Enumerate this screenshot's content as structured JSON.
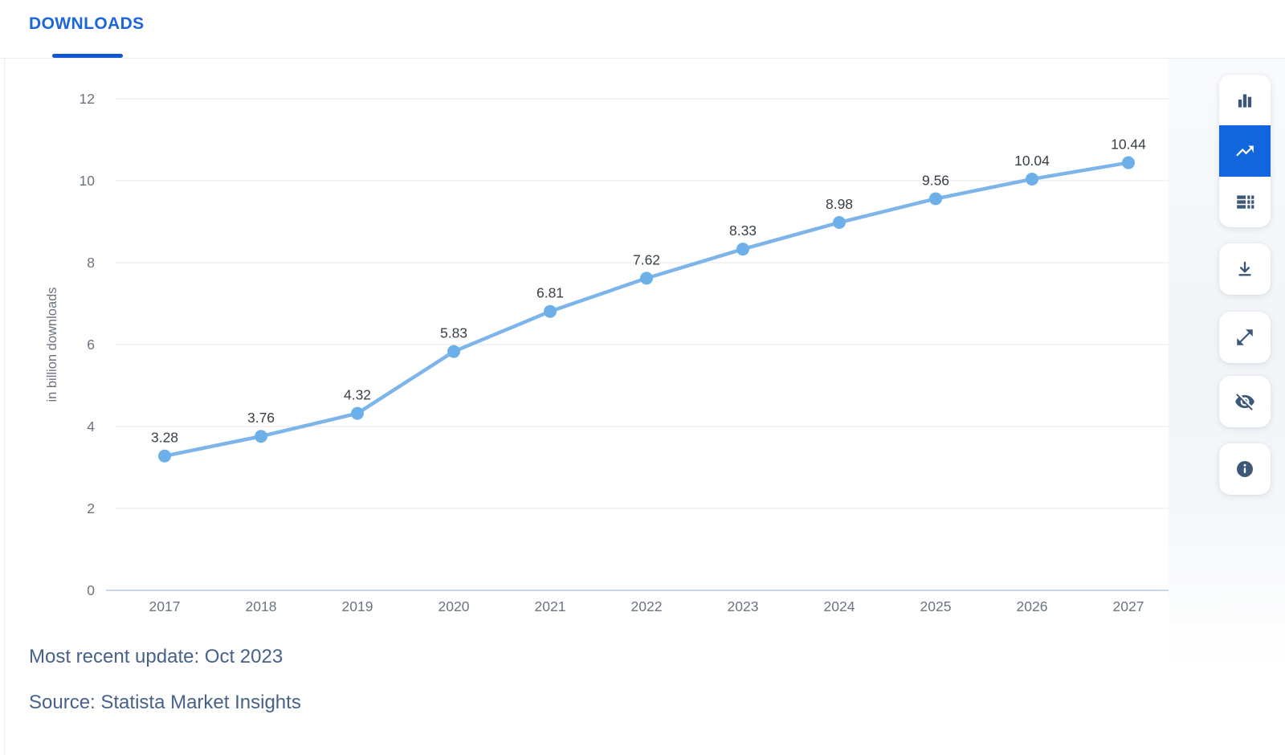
{
  "tabs": [
    {
      "label": "DOWNLOADS",
      "active": true
    }
  ],
  "chart_data": {
    "type": "line",
    "x": [
      2017,
      2018,
      2019,
      2020,
      2021,
      2022,
      2023,
      2024,
      2025,
      2026,
      2027
    ],
    "values": [
      3.28,
      3.76,
      4.32,
      5.83,
      6.81,
      7.62,
      8.33,
      8.98,
      9.56,
      10.04,
      10.44
    ],
    "series_name": "Downloads",
    "title": "",
    "xlabel": "",
    "ylabel": "in billion downloads",
    "ylim": [
      0,
      12
    ],
    "yticks": [
      0,
      2,
      4,
      6,
      8,
      10,
      12
    ],
    "grid": true,
    "legend": "none",
    "data_labels_visible": true,
    "line_color": "#7db5eb",
    "marker_color": "#6db0e9",
    "grid_color": "#e7e7e7",
    "axis_line_color": "#ccd6eb"
  },
  "sidebar": {
    "buttons": [
      {
        "icon": "bar-chart-icon",
        "selected": false
      },
      {
        "icon": "trend-line-icon",
        "selected": true
      },
      {
        "icon": "data-table-icon",
        "selected": false
      },
      {
        "icon": "download-icon",
        "selected": false
      },
      {
        "icon": "fullscreen-icon",
        "selected": false
      },
      {
        "icon": "hide-labels-eye-icon",
        "selected": false
      },
      {
        "icon": "info-icon",
        "selected": false
      }
    ]
  },
  "footer": {
    "update_text": "Most recent update: Oct 2023",
    "source_text": "Source: Statista Market Insights"
  },
  "colors": {
    "accent_blue": "#1b66db",
    "tab_underline_blue": "#1256d4",
    "selected_button_blue": "#1166dd",
    "icon_navy": "#3d5877",
    "footer_text": "#46618a",
    "tick_text": "#6b7480",
    "data_label_text": "#383f48"
  }
}
